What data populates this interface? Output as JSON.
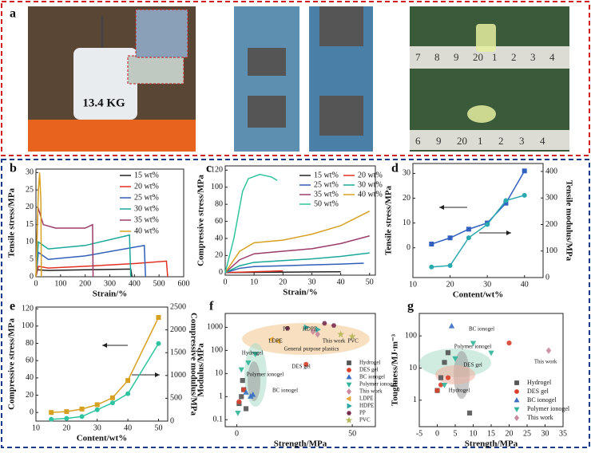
{
  "photo_panel": {
    "label": "a",
    "weight_label": "13.4 KG",
    "ruler_top": [
      "7",
      "8",
      "9",
      "20",
      "1",
      "2",
      "3",
      "4"
    ],
    "ruler_bottom": [
      "6",
      "9",
      "20",
      "1",
      "2",
      "3",
      "4"
    ]
  },
  "chart_data": [
    {
      "type": "line",
      "panel_label": "b",
      "xlabel": "Strain/%",
      "ylabel": "Tensile stress/MPa",
      "xlim": [
        0,
        600
      ],
      "xticks": [
        0,
        100,
        200,
        300,
        400,
        500,
        600
      ],
      "ylim": [
        0,
        31
      ],
      "yticks": [
        0,
        5,
        10,
        15,
        20,
        25,
        30
      ],
      "series": [
        {
          "name": "15 wt%",
          "color": "#222222",
          "x": [
            0,
            5,
            50,
            200,
            385,
            390
          ],
          "values": [
            0,
            2,
            1.8,
            2,
            2.2,
            0
          ]
        },
        {
          "name": "20 wt%",
          "color": "#e03020",
          "x": [
            0,
            10,
            50,
            200,
            400,
            530,
            535
          ],
          "values": [
            0,
            3,
            2.5,
            3,
            3.8,
            4.5,
            0
          ]
        },
        {
          "name": "25 wt%",
          "color": "#2f5fb8",
          "x": [
            0,
            10,
            50,
            200,
            440,
            445
          ],
          "values": [
            0,
            7,
            5,
            6,
            9,
            0
          ]
        },
        {
          "name": "30 wt%",
          "color": "#1aa89a",
          "x": [
            0,
            10,
            50,
            200,
            380,
            385
          ],
          "values": [
            0,
            10,
            8,
            9,
            12,
            0
          ]
        },
        {
          "name": "35 wt%",
          "color": "#9b3b6b",
          "x": [
            0,
            8,
            30,
            80,
            200,
            230,
            232
          ],
          "values": [
            0,
            20,
            15,
            14,
            14,
            15,
            0
          ]
        },
        {
          "name": "40 wt%",
          "color": "#d8a020",
          "x": [
            0,
            10,
            15,
            20,
            22
          ],
          "values": [
            0,
            25,
            30,
            22,
            0
          ]
        }
      ]
    },
    {
      "type": "line",
      "panel_label": "c",
      "xlabel": "Strain/%",
      "ylabel": "Compressive stress/MPa",
      "xlim": [
        0,
        52
      ],
      "xticks": [
        0,
        10,
        20,
        30,
        40,
        50
      ],
      "ylim": [
        -3,
        125
      ],
      "yticks": [
        0,
        20,
        40,
        60,
        80,
        100,
        120
      ],
      "series": [
        {
          "name": "15 wt%",
          "color": "#222222",
          "x": [
            0,
            20,
            40
          ],
          "values": [
            0,
            0.5,
            1
          ]
        },
        {
          "name": "20 wt%",
          "color": "#e03020",
          "x": [
            0,
            10,
            20
          ],
          "values": [
            0,
            1,
            2
          ]
        },
        {
          "name": "25 wt%",
          "color": "#2f5fb8",
          "x": [
            0,
            5,
            10,
            20,
            30,
            40,
            48
          ],
          "values": [
            0,
            5,
            7,
            8,
            9,
            10,
            11
          ]
        },
        {
          "name": "30 wt%",
          "color": "#1aa89a",
          "x": [
            0,
            5,
            10,
            20,
            30,
            40,
            50
          ],
          "values": [
            0,
            8,
            12,
            14,
            16,
            19,
            23
          ]
        },
        {
          "name": "35 wt%",
          "color": "#9b3b6b",
          "x": [
            0,
            5,
            10,
            20,
            30,
            40,
            50
          ],
          "values": [
            0,
            15,
            22,
            25,
            28,
            34,
            43
          ]
        },
        {
          "name": "40 wt%",
          "color": "#d8a020",
          "x": [
            0,
            5,
            10,
            20,
            30,
            40,
            50
          ],
          "values": [
            0,
            25,
            35,
            38,
            45,
            55,
            72
          ]
        },
        {
          "name": "50 wt%",
          "color": "#2ec4a0",
          "x": [
            0,
            3,
            6,
            8,
            12,
            16,
            18
          ],
          "values": [
            0,
            40,
            95,
            110,
            115,
            112,
            108
          ]
        }
      ]
    },
    {
      "type": "line",
      "panel_label": "d",
      "xlabel": "Content/wt%",
      "ylabel": "Tensile stress/MPa",
      "y2label": "Tensile modulus/MPa",
      "xlim": [
        10,
        45
      ],
      "xticks": [
        10,
        20,
        30,
        40
      ],
      "ylim": [
        -12,
        34
      ],
      "yticks": [
        0,
        10,
        20,
        30
      ],
      "y2lim": [
        0,
        430
      ],
      "y2ticks": [
        0,
        100,
        200,
        300,
        400
      ],
      "series": [
        {
          "color": "#3060c0",
          "marker": "square",
          "x": [
            15,
            20,
            25,
            30,
            35,
            40
          ],
          "values": [
            1.5,
            4,
            7.5,
            10,
            18,
            31
          ]
        },
        {
          "color": "#2aa8b0",
          "marker": "circle",
          "axis": "y2",
          "x": [
            15,
            20,
            25,
            30,
            35,
            40
          ],
          "values": [
            40,
            45,
            150,
            200,
            290,
            310
          ]
        }
      ]
    },
    {
      "type": "line",
      "panel_label": "e",
      "xlabel": "Content/wt%",
      "ylabel": "Compressive stress/MPa",
      "y2label": "Compressive modulus/MPa",
      "xlim": [
        10,
        53
      ],
      "xticks": [
        10,
        20,
        30,
        40,
        50
      ],
      "ylim": [
        -10,
        122
      ],
      "yticks": [
        0,
        20,
        40,
        60,
        80,
        100,
        120
      ],
      "y2lim": [
        0,
        2500
      ],
      "y2ticks": [
        0,
        500,
        1000,
        1500,
        2000,
        2500
      ],
      "series": [
        {
          "color": "#d8a020",
          "marker": "square",
          "x": [
            15,
            20,
            25,
            30,
            35,
            40,
            50
          ],
          "values": [
            0,
            1,
            4,
            9,
            17,
            37,
            110
          ]
        },
        {
          "color": "#2ec4a0",
          "marker": "circle",
          "axis": "y2",
          "x": [
            15,
            20,
            25,
            30,
            35,
            40,
            50
          ],
          "values": [
            40,
            60,
            100,
            250,
            400,
            600,
            1700
          ]
        }
      ]
    },
    {
      "type": "scatter",
      "panel_label": "f",
      "xlabel": "Strength/MPa",
      "ylabel": "Modulus/MPa",
      "ylog": true,
      "xlim": [
        -5,
        60
      ],
      "xticks": [
        0,
        50
      ],
      "ylim": [
        0.05,
        4000
      ],
      "yticks": [
        0.1,
        1,
        10,
        100,
        1000
      ],
      "annotations": [
        "PP",
        "HDPE",
        "LDPE",
        "This work",
        "PVC",
        "General purpose plastics",
        "Hydrogel",
        "DES gel",
        "Polymer ionogel",
        "BC ionogel"
      ],
      "series": [
        {
          "name": "Hydrogel",
          "color": "#555555",
          "marker": "square",
          "x": [
            1,
            2,
            3,
            4,
            2.5
          ],
          "values": [
            0.5,
            1,
            2,
            0.3,
            5
          ]
        },
        {
          "name": "DES gel",
          "color": "#d9412b",
          "marker": "circle",
          "x": [
            1,
            3,
            30
          ],
          "values": [
            0.6,
            2,
            25
          ]
        },
        {
          "name": "BC ionogel",
          "color": "#3a6fc4",
          "marker": "triangle",
          "x": [
            4,
            6,
            7
          ],
          "values": [
            1.5,
            1,
            1.2
          ]
        },
        {
          "name": "Polymer ionogel",
          "color": "#2fb59a",
          "marker": "down",
          "x": [
            0.5,
            2,
            5,
            8
          ],
          "values": [
            0.2,
            15,
            30,
            70
          ]
        },
        {
          "name": "This work",
          "color": "#c98a9e",
          "marker": "diamond",
          "x": [
            33,
            35
          ],
          "values": [
            650,
            500
          ]
        },
        {
          "name": "LDPE",
          "color": "#e6a93c",
          "marker": "left",
          "x": [
            15,
            18
          ],
          "values": [
            300,
            250
          ]
        },
        {
          "name": "HDPE",
          "color": "#2aa8a0",
          "marker": "right",
          "x": [
            30,
            35
          ],
          "values": [
            1000,
            800
          ]
        },
        {
          "name": "PP",
          "color": "#7a2e4f",
          "marker": "hex",
          "x": [
            22,
            38,
            42
          ],
          "values": [
            900,
            1500,
            1200
          ]
        },
        {
          "name": "PVC",
          "color": "#b5b85a",
          "marker": "star",
          "x": [
            45,
            50
          ],
          "values": [
            500,
            400
          ]
        }
      ]
    },
    {
      "type": "scatter",
      "panel_label": "g",
      "xlabel": "Strength/MPa",
      "ylabel": "Toughness/MJ·m⁻³",
      "ylog": true,
      "xlim": [
        -5,
        35
      ],
      "xticks": [
        -5,
        0,
        5,
        10,
        15,
        20,
        25,
        30,
        35
      ],
      "ylim": [
        0.15,
        500
      ],
      "yticks": [
        1,
        10,
        100
      ],
      "annotations": [
        "BC ionogel",
        "Polymer ionogel",
        "DES gel",
        "Hydrogel",
        "This work"
      ],
      "series": [
        {
          "name": "Hydrogel",
          "color": "#555555",
          "marker": "square",
          "x": [
            0,
            1,
            2,
            3,
            9
          ],
          "values": [
            2,
            5,
            15,
            30,
            0.4
          ]
        },
        {
          "name": "DES gel",
          "color": "#d9412b",
          "marker": "circle",
          "x": [
            0,
            3,
            20,
            1
          ],
          "values": [
            2,
            5,
            60,
            3
          ]
        },
        {
          "name": "BC ionogel",
          "color": "#3a6fc4",
          "marker": "triangle",
          "x": [
            4
          ],
          "values": [
            200
          ]
        },
        {
          "name": "Polymer ionogel",
          "color": "#2fb59a",
          "marker": "down",
          "x": [
            2,
            5,
            10,
            15
          ],
          "values": [
            3,
            20,
            60,
            30
          ]
        },
        {
          "name": "This work",
          "color": "#c98a9e",
          "marker": "diamond",
          "x": [
            31
          ],
          "values": [
            35
          ]
        }
      ]
    }
  ]
}
